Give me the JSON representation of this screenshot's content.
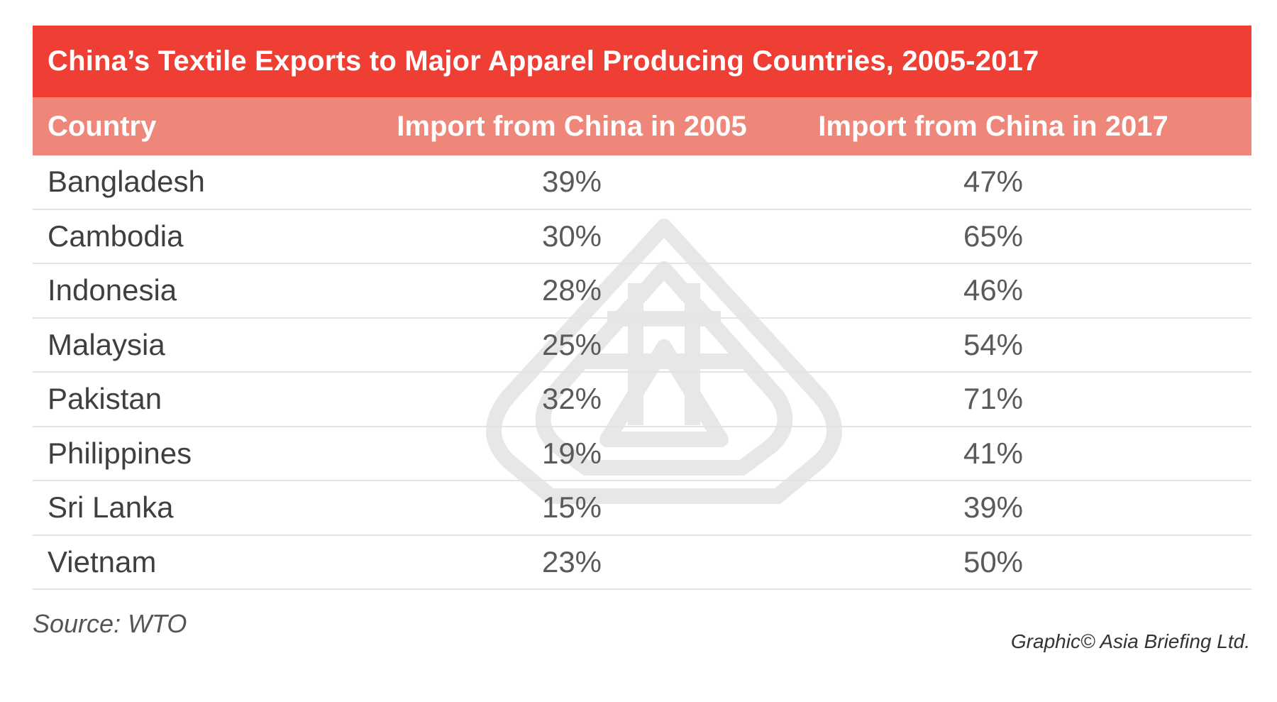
{
  "title": "China’s Textile Exports to Major Apparel Producing Countries, 2005-2017",
  "source": "Source: WTO",
  "credit": "Graphic© Asia Briefing Ltd.",
  "chart_data": {
    "type": "table",
    "title": "China’s Textile Exports to Major Apparel Producing Countries, 2005-2017",
    "columns": [
      "Country",
      "Import from China in 2005",
      "Import from China in 2017"
    ],
    "rows": [
      [
        "Bangladesh",
        "39%",
        "47%"
      ],
      [
        "Cambodia",
        "30%",
        "65%"
      ],
      [
        "Indonesia",
        "28%",
        "46%"
      ],
      [
        "Malaysia",
        "25%",
        "54%"
      ],
      [
        "Pakistan",
        "32%",
        "71%"
      ],
      [
        "Philippines",
        "19%",
        "41%"
      ],
      [
        "Sri Lanka",
        "15%",
        "39%"
      ],
      [
        "Vietnam",
        "23%",
        "50%"
      ]
    ]
  },
  "colors": {
    "title_bg": "#ef3e33",
    "header_bg": "#ee877a",
    "row_divider": "#e3e3e3"
  },
  "icons": {
    "watermark": "asia-briefing-logo-icon"
  }
}
